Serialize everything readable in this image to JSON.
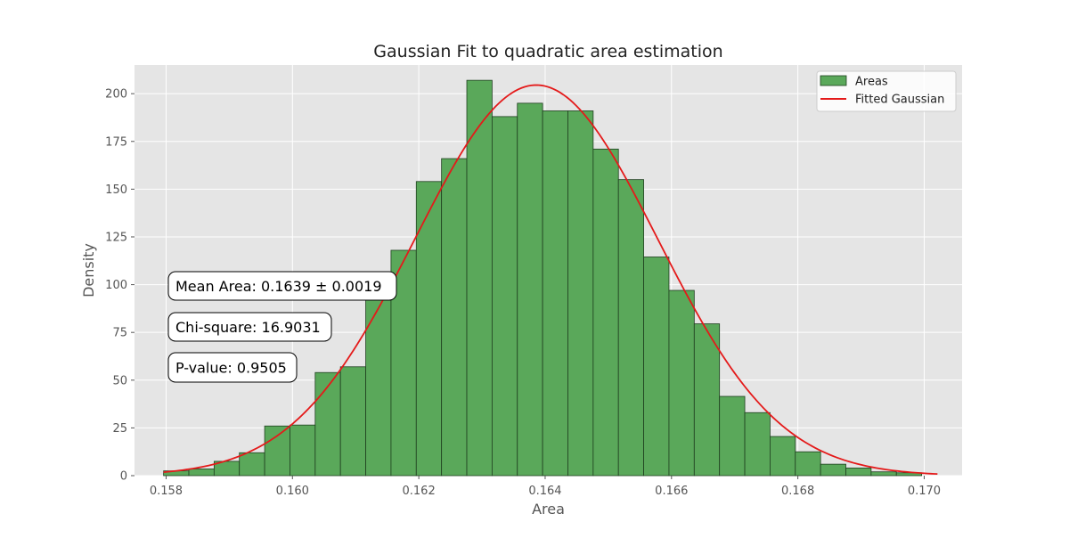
{
  "chart_data": {
    "type": "bar",
    "title": "Gaussian Fit to quadratic area estimation",
    "xlabel": "Area",
    "ylabel": "Density",
    "xlim": [
      0.1575,
      0.1706
    ],
    "ylim": [
      0,
      215
    ],
    "xticks": [
      0.158,
      0.16,
      0.162,
      0.164,
      0.166,
      0.168,
      0.17
    ],
    "xtick_labels": [
      "0.158",
      "0.160",
      "0.162",
      "0.164",
      "0.166",
      "0.168",
      "0.170"
    ],
    "yticks": [
      0,
      25,
      50,
      75,
      100,
      125,
      150,
      175,
      200
    ],
    "ytick_labels": [
      "0",
      "25",
      "50",
      "75",
      "100",
      "125",
      "150",
      "175",
      "200"
    ],
    "grid": true,
    "legend_position": "top-right",
    "legend": [
      {
        "label": "Areas",
        "kind": "patch"
      },
      {
        "label": "Fitted Gaussian",
        "kind": "line"
      }
    ],
    "histogram": {
      "bin_start": 0.15796,
      "bin_width": 0.0004,
      "values": [
        2.5,
        3.5,
        7.5,
        12,
        26,
        26.5,
        54,
        57,
        96,
        118,
        154,
        166,
        207,
        188,
        195,
        191,
        191,
        171,
        155,
        114.5,
        97,
        79.5,
        41.5,
        33,
        20.5,
        12.5,
        6,
        4,
        2,
        1.5
      ]
    },
    "gaussian": {
      "mean": 0.16386,
      "std": 0.00192,
      "peak": 204.5,
      "x_range": [
        0.15796,
        0.17021
      ]
    },
    "annotations": [
      "Mean Area: 0.1639 ± 0.0019",
      "Chi-square: 16.9031",
      "P-value: 0.9505"
    ],
    "colors": {
      "bar_fill": "#5aa85a",
      "bar_edge": "#1f3f1f",
      "curve": "#e41a1a",
      "plot_bg": "#e5e5e5",
      "grid": "#ffffff",
      "text": "#555555"
    }
  }
}
